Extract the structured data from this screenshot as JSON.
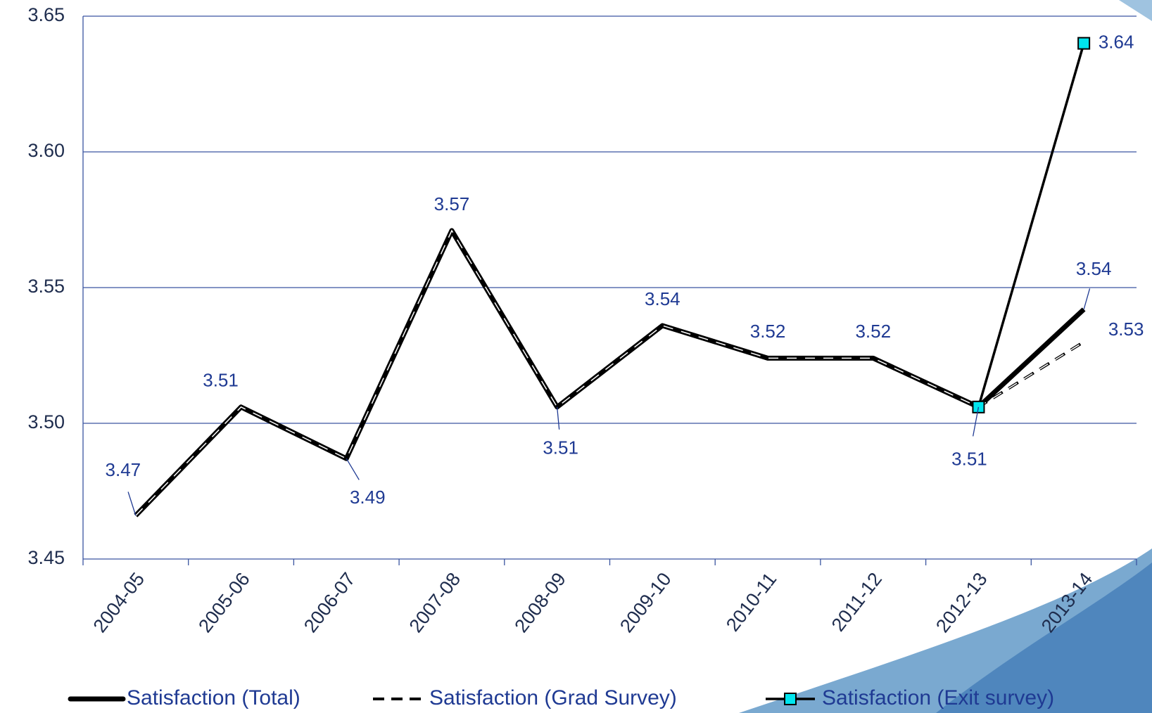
{
  "chart_data": {
    "type": "line",
    "categories": [
      "2004-05",
      "2005-06",
      "2006-07",
      "2007-08",
      "2008-09",
      "2009-10",
      "2010-11",
      "2011-12",
      "2012-13",
      "2013-14"
    ],
    "series": [
      {
        "name": "Satisfaction (Total)",
        "color": "#000000",
        "values": [
          3.466,
          3.506,
          3.487,
          3.571,
          3.506,
          3.536,
          3.524,
          3.524,
          3.506,
          3.542
        ],
        "value_labels": [
          "3.47",
          "3.51",
          "3.49",
          "3.57",
          "3.51",
          "3.54",
          "3.52",
          "3.52",
          "3.51",
          "3.54"
        ]
      },
      {
        "name": "Satisfaction (Grad Survey)",
        "color": "#000000",
        "values": [
          3.466,
          3.506,
          3.487,
          3.571,
          3.506,
          3.536,
          3.524,
          3.524,
          3.506,
          3.53
        ],
        "value_labels": [
          null,
          null,
          null,
          null,
          null,
          null,
          null,
          null,
          null,
          "3.53"
        ]
      },
      {
        "name": "Satisfaction (Exit survey)",
        "color": "#00e5ee",
        "values": [
          null,
          null,
          null,
          null,
          null,
          null,
          null,
          null,
          3.506,
          3.64
        ],
        "value_labels": [
          null,
          null,
          null,
          null,
          null,
          null,
          null,
          null,
          null,
          "3.64"
        ]
      }
    ],
    "ylim": [
      3.45,
      3.65
    ],
    "yticks": [
      3.45,
      {
        "value": 3.5,
        "label": "3.50"
      },
      3.55,
      {
        "value": 3.6,
        "label": "3.60"
      },
      3.65
    ],
    "grid": true
  }
}
